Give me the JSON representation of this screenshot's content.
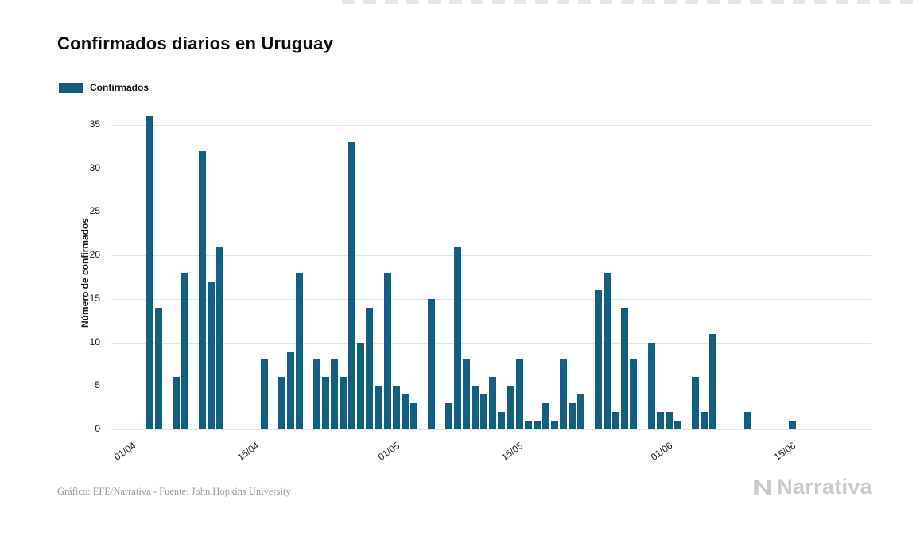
{
  "title": "Confirmados diarios en Uruguay",
  "legend": {
    "label": "Confirmados",
    "color": "#135f7f"
  },
  "footer": {
    "credit": "Gráfico: EFE/Narrativa - Fuente: John Hopkins University"
  },
  "brand": {
    "name": "Narrativa",
    "logo_icon": "narrativa-n-icon",
    "color": "#c6cbce"
  },
  "chart_data": {
    "type": "bar",
    "title": "Confirmados diarios en Uruguay",
    "xlabel": "",
    "ylabel": "Número de confirmados",
    "ylim": [
      0,
      36
    ],
    "yticks": [
      0,
      5,
      10,
      15,
      20,
      25,
      30,
      35
    ],
    "grid": true,
    "legend_position": "top-left",
    "bar_color": "#135f7f",
    "x_ticks": [
      {
        "day": 0,
        "label": "01/04"
      },
      {
        "day": 14,
        "label": "15/04"
      },
      {
        "day": 30,
        "label": "01/05"
      },
      {
        "day": 44,
        "label": "15/05"
      },
      {
        "day": 61,
        "label": "01/06"
      },
      {
        "day": 75,
        "label": "15/06"
      }
    ],
    "x_axis_note": "days indexed from 01/04; bars listed as [day_index, value]",
    "series": [
      {
        "name": "Confirmados",
        "color": "#135f7f",
        "values": [
          [
            3,
            36
          ],
          [
            4,
            14
          ],
          [
            6,
            6
          ],
          [
            7,
            18
          ],
          [
            9,
            32
          ],
          [
            10,
            17
          ],
          [
            11,
            21
          ],
          [
            16,
            8
          ],
          [
            18,
            6
          ],
          [
            19,
            9
          ],
          [
            20,
            18
          ],
          [
            22,
            8
          ],
          [
            23,
            6
          ],
          [
            24,
            8
          ],
          [
            25,
            6
          ],
          [
            26,
            33
          ],
          [
            27,
            10
          ],
          [
            28,
            14
          ],
          [
            29,
            5
          ],
          [
            30,
            18
          ],
          [
            31,
            5
          ],
          [
            32,
            4
          ],
          [
            33,
            3
          ],
          [
            35,
            15
          ],
          [
            37,
            3
          ],
          [
            38,
            21
          ],
          [
            39,
            8
          ],
          [
            40,
            5
          ],
          [
            41,
            4
          ],
          [
            42,
            6
          ],
          [
            43,
            2
          ],
          [
            44,
            5
          ],
          [
            45,
            8
          ],
          [
            46,
            1
          ],
          [
            47,
            1
          ],
          [
            48,
            3
          ],
          [
            49,
            1
          ],
          [
            50,
            8
          ],
          [
            51,
            3
          ],
          [
            52,
            4
          ],
          [
            54,
            16
          ],
          [
            55,
            18
          ],
          [
            56,
            2
          ],
          [
            57,
            14
          ],
          [
            58,
            8
          ],
          [
            60,
            10
          ],
          [
            61,
            2
          ],
          [
            62,
            2
          ],
          [
            63,
            1
          ],
          [
            65,
            6
          ],
          [
            66,
            2
          ],
          [
            67,
            11
          ],
          [
            71,
            2
          ],
          [
            76,
            1
          ]
        ]
      }
    ]
  }
}
